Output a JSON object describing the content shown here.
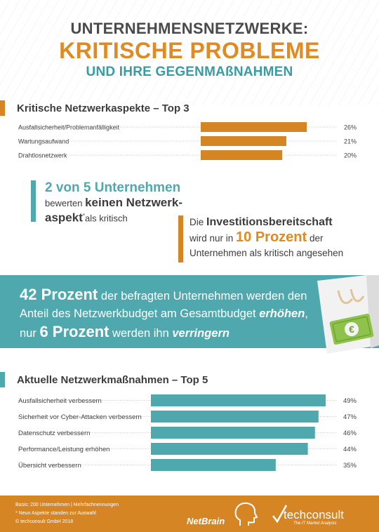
{
  "header": {
    "line1": "UNTERNEHMENSNETZWERKE:",
    "line2": "KRITISCHE PROBLEME",
    "line3": "UND IHRE GEGENMAßNAHMEN"
  },
  "colors": {
    "orange": "#e08a23",
    "teal": "#4fa8ad",
    "dark": "#3c3c3c"
  },
  "callout1": {
    "big": "2 von 5 Unternehmen",
    "t1": "bewerten ",
    "t1b": "keinen Netzwerk-",
    "t2b": "aspekt",
    "sup": "*",
    "t2": "als kritisch"
  },
  "callout2": {
    "t1": "Die ",
    "t1b": "Investitionsbereitschaft",
    "t2": "wird nur in ",
    "t2b": "10 Prozent",
    "t2c": " der",
    "t3": "Unternehmen als kritisch angesehen"
  },
  "banner": {
    "b1": "42 Prozent",
    "s1": " der befragten Unternehmen werden den",
    "s2": "Anteil des Netzwerkbudget am Gesamtbudget ",
    "i1": "erhöhen",
    "s3": ",",
    "s4": "nur ",
    "b2": "6 Prozent",
    "s5": " werden ihn ",
    "i2": "verringern",
    "money_icon": "euro-banknote-icon"
  },
  "footer": {
    "basis": "Basis: 200 Unternehmen | Mehrfachnennungen",
    "note": "* Neun Aspekte standen zur Auswahl",
    "copyright": "© techconsult GmbH 2018",
    "logo1": "NetBrain",
    "logo2": "techconsult",
    "logo2_tag": "The IT Market Analysts"
  },
  "chart_data": [
    {
      "type": "bar",
      "orientation": "horizontal",
      "title": "Kritische Netzwerkaspekte – Top 3",
      "categories": [
        "Ausfallsicherheit/Problemanfälligkeit",
        "Wartungsaufwand",
        "Drahtlosnetzwerk"
      ],
      "values": [
        26,
        21,
        20
      ],
      "value_labels": [
        "26%",
        "21%",
        "20%"
      ],
      "unit": "%",
      "color": "#d58524",
      "xlim": [
        0,
        26
      ]
    },
    {
      "type": "bar",
      "orientation": "horizontal",
      "title": "Aktuelle Netzwerkmaßnahmen – Top 5",
      "categories": [
        "Ausfallsicherheit verbessern",
        "Sicherheit vor Cyber-Attacken verbessern",
        "Datenschutz verbessern",
        "Performance/Leistung erhöhen",
        "Übersicht verbessern"
      ],
      "values": [
        49,
        47,
        46,
        44,
        35
      ],
      "value_labels": [
        "49%",
        "47%",
        "46%",
        "44%",
        "35%"
      ],
      "unit": "%",
      "color": "#4fa8ad",
      "xlim": [
        0,
        49
      ]
    }
  ]
}
